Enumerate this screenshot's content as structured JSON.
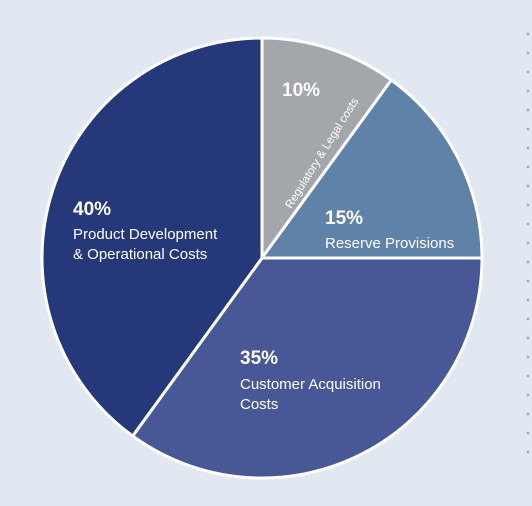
{
  "chart_data": {
    "type": "pie",
    "title": "",
    "slices": [
      {
        "percent_label": "10%",
        "value": 10,
        "label_lines": [
          "Regulatory & Legal costs"
        ],
        "color": "#a3a6ab"
      },
      {
        "percent_label": "15%",
        "value": 15,
        "label_lines": [
          "Reserve Provisions"
        ],
        "color": "#5f82a8"
      },
      {
        "percent_label": "35%",
        "value": 35,
        "label_lines": [
          "Customer Acquisition",
          "Costs"
        ],
        "color": "#485896"
      },
      {
        "percent_label": "40%",
        "value": 40,
        "label_lines": [
          "Product Development",
          "& Operational Costs"
        ],
        "color": "#24387a"
      }
    ],
    "legend": "none"
  },
  "colors": {
    "background": "#e2e8f1",
    "slice_border": "#ffffff",
    "decorative_dots": "#9aa9c4"
  }
}
